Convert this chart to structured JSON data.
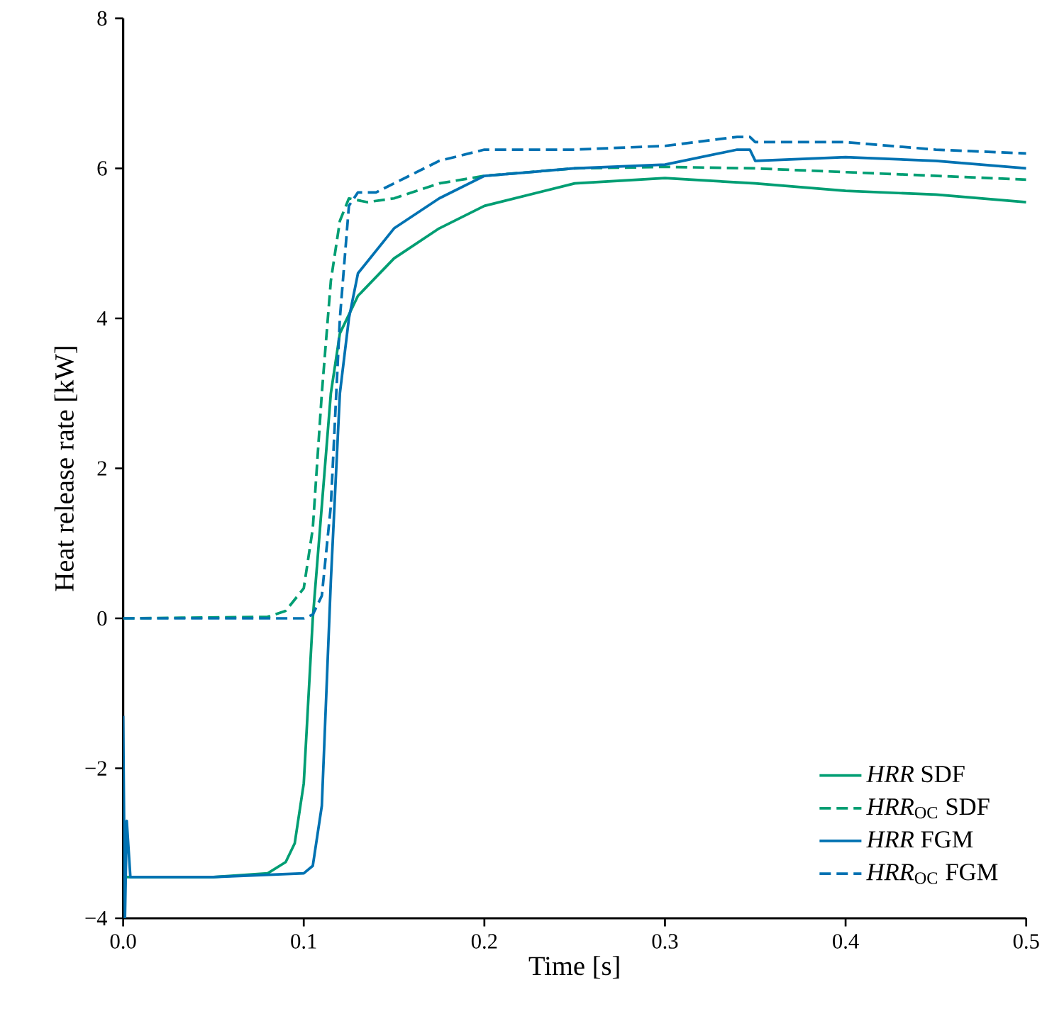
{
  "chart_data": {
    "type": "line",
    "xlabel": "Time [s]",
    "ylabel": "Heat release rate [kW]",
    "xlim": [
      0,
      0.5
    ],
    "ylim": [
      -4,
      8
    ],
    "xticks": [
      {
        "value": 0,
        "label": "0.0"
      },
      {
        "value": 0.1,
        "label": "0.1"
      },
      {
        "value": 0.2,
        "label": "0.2"
      },
      {
        "value": 0.3,
        "label": "0.3"
      },
      {
        "value": 0.4,
        "label": "0.4"
      },
      {
        "value": 0.5,
        "label": "0.5"
      }
    ],
    "yticks": [
      {
        "value": -4,
        "label": "−4"
      },
      {
        "value": -2,
        "label": "−2"
      },
      0,
      2,
      4,
      6,
      8
    ],
    "legend": "bottom right",
    "grid": false,
    "marker": "none",
    "series": [
      {
        "name": "*HRR* SDF",
        "color": "#009e73",
        "line_style": "solid",
        "x": [
          0,
          0.002,
          0.05,
          0.08,
          0.09,
          0.095,
          0.1,
          0.105,
          0.11,
          0.115,
          0.12,
          0.13,
          0.15,
          0.175,
          0.2,
          0.25,
          0.3,
          0.35,
          0.4,
          0.45,
          0.5
        ],
        "values": [
          -3.45,
          -3.45,
          -3.45,
          -3.4,
          -3.25,
          -3.0,
          -2.2,
          0.0,
          1.5,
          3.0,
          3.8,
          4.3,
          4.8,
          5.2,
          5.5,
          5.8,
          5.87,
          5.8,
          5.7,
          5.65,
          5.55
        ]
      },
      {
        "name": "*HRR*$_{OC}$ SDF",
        "color": "#009e73",
        "line_style": "dashed",
        "x": [
          0,
          0.08,
          0.09,
          0.1,
          0.105,
          0.11,
          0.115,
          0.12,
          0.125,
          0.135,
          0.15,
          0.175,
          0.2,
          0.25,
          0.3,
          0.35,
          0.4,
          0.45,
          0.5
        ],
        "values": [
          0,
          0.02,
          0.1,
          0.4,
          1.2,
          3.0,
          4.5,
          5.3,
          5.6,
          5.55,
          5.6,
          5.8,
          5.9,
          6.0,
          6.02,
          6.0,
          5.95,
          5.9,
          5.85
        ]
      },
      {
        "name": "*HRR* FGM",
        "color": "#0072b2",
        "line_style": "solid",
        "x": [
          0,
          0.001,
          0.002,
          0.004,
          0.05,
          0.1,
          0.105,
          0.11,
          0.115,
          0.12,
          0.125,
          0.13,
          0.15,
          0.175,
          0.2,
          0.25,
          0.3,
          0.34,
          0.347,
          0.35,
          0.4,
          0.45,
          0.5
        ],
        "values": [
          -1.3,
          -4.0,
          -2.7,
          -3.45,
          -3.45,
          -3.4,
          -3.3,
          -2.5,
          0.5,
          3.0,
          4.0,
          4.6,
          5.2,
          5.6,
          5.9,
          6.0,
          6.05,
          6.25,
          6.25,
          6.1,
          6.15,
          6.1,
          6.0
        ]
      },
      {
        "name": "*HRR*$_{OC}$ FGM",
        "color": "#0072b2",
        "line_style": "dashed",
        "x": [
          0,
          0.1,
          0.105,
          0.11,
          0.115,
          0.12,
          0.125,
          0.13,
          0.14,
          0.15,
          0.175,
          0.2,
          0.25,
          0.3,
          0.34,
          0.347,
          0.35,
          0.4,
          0.45,
          0.5
        ],
        "values": [
          0,
          0.0,
          0.05,
          0.3,
          1.5,
          4.0,
          5.5,
          5.68,
          5.68,
          5.8,
          6.1,
          6.25,
          6.25,
          6.3,
          6.42,
          6.42,
          6.35,
          6.35,
          6.25,
          6.2
        ]
      }
    ]
  }
}
